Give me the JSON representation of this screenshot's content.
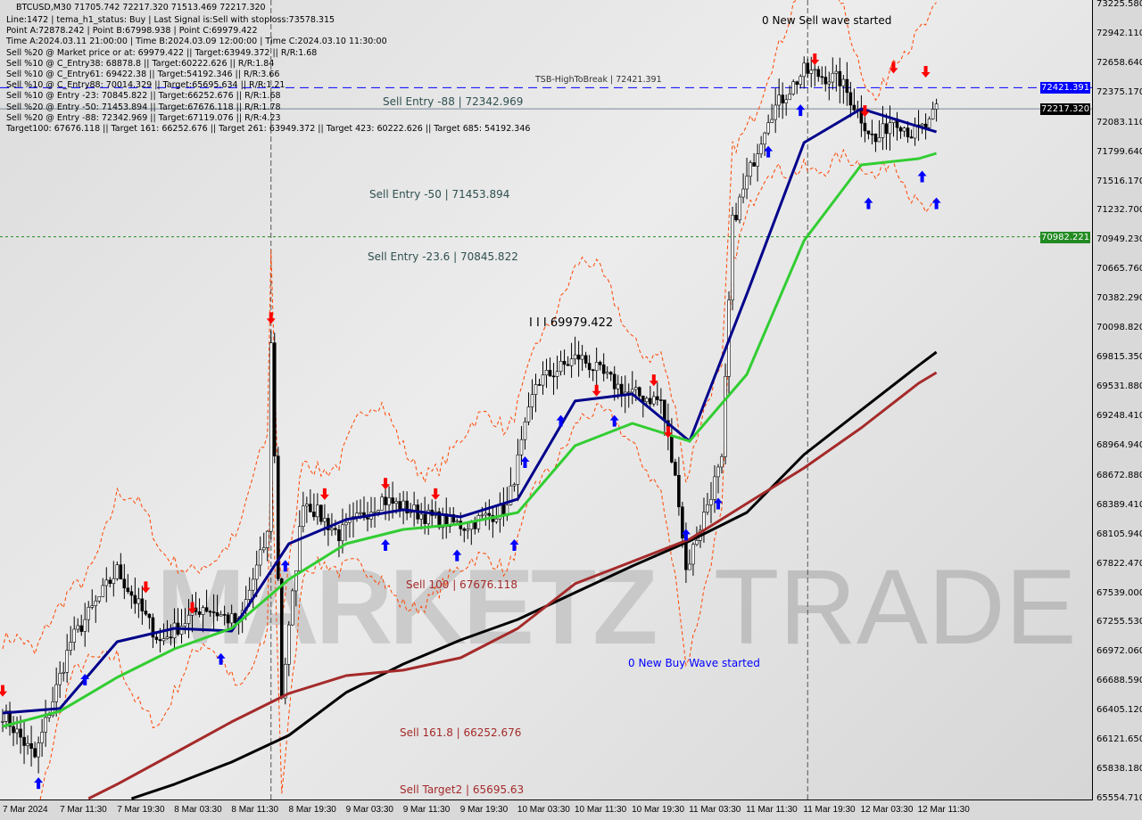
{
  "header": {
    "symbol_line": "BTCUSD,M30  71705.742 72217.320 71513.469 72217.320",
    "info_lines": [
      "Line:1472 | tema_h1_status: Buy | Last Signal is:Sell with stoploss:73578.315",
      "Point A:72878.242 | Point B:67998.938 | Point C:69979.422",
      "Time A:2024.03.11 21:00:00 | Time B:2024.03.09 12:00:00 | Time C:2024.03.10 11:30:00",
      "Sell %20 @ Market price or at: 69979.422 || Target:63949.372 || R/R:1.68",
      "Sell %10 @ C_Entry38: 68878.8 || Target:60222.626 || R/R:1.84",
      "Sell %10 @ C_Entry61: 69422.38 || Target:54192.346 || R/R:3.66",
      "Sell %10 @ C_Entry88: 70014.329 || Target:65695.634 || R/R:1.21",
      "Sell %10 @ Entry -23: 70845.822 || Target:66252.676 || R/R:1.68",
      "Sell %20 @ Entry -50: 71453.894 || Target:67676.118 || R/R:1.78",
      "Sell %20 @ Entry -88: 72342.969 || Target:67119.076 || R/R:4.23",
      "Target100: 67676.118 || Target 161: 66252.676 || Target 261: 63949.372 || Target 423: 60222.626 || Target 685: 54192.346"
    ],
    "tsb_label": "TSB-HighToBreak | 72421.391"
  },
  "annotations": {
    "new_sell_wave": "0 New Sell wave started",
    "sell_entry_88": "Sell Entry -88 | 72342.969",
    "sell_entry_50": "Sell Entry -50 | 71453.894",
    "sell_entry_23": "Sell Entry -23.6 | 70845.822",
    "point_c": "I I I 69979.422",
    "sell_100": "Sell 100 | 67676.118",
    "new_buy_wave": "0 New Buy Wave started",
    "sell_161": "Sell 161.8 | 66252.676",
    "sell_target2": "Sell Target2 | 65695.63"
  },
  "watermark": {
    "left": "MARKETZ",
    "right": "TRADE"
  },
  "chart_data": {
    "type": "candlestick",
    "symbol": "BTCUSD",
    "timeframe": "M30",
    "ylim": [
      65554.71,
      73225.58
    ],
    "y_ticks": [
      "73225.580",
      "72942.110",
      "72658.640",
      "72375.170",
      "72083.110",
      "71799.640",
      "71516.170",
      "71232.700",
      "70949.230",
      "70665.760",
      "70382.290",
      "70098.820",
      "69815.350",
      "69531.880",
      "69248.410",
      "68964.940",
      "68672.880",
      "68389.410",
      "68105.940",
      "67822.470",
      "67539.000",
      "67255.530",
      "66972.060",
      "66688.590",
      "66405.120",
      "66121.650",
      "65838.180",
      "65554.710"
    ],
    "x_ticks": [
      "7 Mar 2024",
      "7 Mar 11:30",
      "7 Mar 19:30",
      "8 Mar 03:30",
      "8 Mar 11:30",
      "8 Mar 19:30",
      "9 Mar 03:30",
      "9 Mar 11:30",
      "9 Mar 19:30",
      "10 Mar 03:30",
      "10 Mar 11:30",
      "10 Mar 19:30",
      "11 Mar 03:30",
      "11 Mar 11:30",
      "11 Mar 19:30",
      "12 Mar 03:30",
      "12 Mar 11:30"
    ],
    "price_tags": [
      {
        "value": "72421.391",
        "color": "#0000ff",
        "line": "dashed"
      },
      {
        "value": "72217.320",
        "color": "#000000",
        "line": "solid"
      },
      {
        "value": "70982.221",
        "color": "#228b22",
        "line": "dotted"
      }
    ],
    "price_path": [
      [
        "2024-03-07 03:30",
        66381
      ],
      [
        "2024-03-07 08:00",
        65951
      ],
      [
        "2024-03-07 13:00",
        67070
      ],
      [
        "2024-03-07 19:30",
        67759
      ],
      [
        "2024-03-08 01:30",
        67070
      ],
      [
        "2024-03-08 07:30",
        67415
      ],
      [
        "2024-03-08 12:30",
        67242
      ],
      [
        "2024-03-08 16:30",
        68103
      ],
      [
        "2024-03-08 17:00",
        69997
      ],
      [
        "2024-03-08 18:30",
        66554
      ],
      [
        "2024-03-08 21:30",
        68448
      ],
      [
        "2024-03-09 02:30",
        68103
      ],
      [
        "2024-03-09 08:30",
        68448
      ],
      [
        "2024-03-09 15:00",
        68276
      ],
      [
        "2024-03-09 20:00",
        68189
      ],
      [
        "2024-03-10 02:00",
        68362
      ],
      [
        "2024-03-10 06:00",
        69567
      ],
      [
        "2024-03-10 12:00",
        69825
      ],
      [
        "2024-03-10 18:30",
        69481
      ],
      [
        "2024-03-10 23:30",
        69395
      ],
      [
        "2024-03-11 02:00",
        68448
      ],
      [
        "2024-03-11 03:00",
        67759
      ],
      [
        "2024-03-11 07:00",
        68620
      ],
      [
        "2024-03-11 08:00",
        68792
      ],
      [
        "2024-03-11 09:30",
        71117
      ],
      [
        "2024-03-11 14:30",
        72150
      ],
      [
        "2024-03-11 19:30",
        72580
      ],
      [
        "2024-03-12 00:30",
        72494
      ],
      [
        "2024-03-12 05:30",
        71891
      ],
      [
        "2024-03-12 08:00",
        72150
      ],
      [
        "2024-03-12 10:30",
        71977
      ],
      [
        "2024-03-12 13:00",
        72063
      ],
      [
        "2024-03-12 14:00",
        72217
      ]
    ],
    "series": [
      {
        "color": "#00008b",
        "values": [
          [
            "2024-03-07 03:30",
            66381
          ],
          [
            "2024-03-07 11:30",
            66425
          ],
          [
            "2024-03-07 19:30",
            67070
          ],
          [
            "2024-03-08 03:30",
            67199
          ],
          [
            "2024-03-08 11:30",
            67173
          ],
          [
            "2024-03-08 19:30",
            68017
          ],
          [
            "2024-03-09 03:30",
            68250
          ],
          [
            "2024-03-09 11:30",
            68345
          ],
          [
            "2024-03-09 19:30",
            68276
          ],
          [
            "2024-03-10 03:30",
            68448
          ],
          [
            "2024-03-10 11:30",
            69395
          ],
          [
            "2024-03-10 19:30",
            69463
          ],
          [
            "2024-03-11 03:30",
            69007
          ],
          [
            "2024-03-11 11:30",
            70428
          ],
          [
            "2024-03-11 19:30",
            71891
          ],
          [
            "2024-03-12 03:30",
            72218
          ],
          [
            "2024-03-12 11:30",
            72046
          ],
          [
            "2024-03-12 14:00",
            71995
          ]
        ]
      },
      {
        "color": "#32cd32",
        "values": [
          [
            "2024-03-07 03:30",
            66252
          ],
          [
            "2024-03-07 11:30",
            66399
          ],
          [
            "2024-03-07 19:30",
            66726
          ],
          [
            "2024-03-08 03:30",
            67001
          ],
          [
            "2024-03-08 11:30",
            67199
          ],
          [
            "2024-03-08 19:30",
            67673
          ],
          [
            "2024-03-09 03:30",
            68017
          ],
          [
            "2024-03-09 11:30",
            68155
          ],
          [
            "2024-03-09 19:30",
            68207
          ],
          [
            "2024-03-10 03:30",
            68318
          ],
          [
            "2024-03-10 11:30",
            68964
          ],
          [
            "2024-03-10 19:30",
            69179
          ],
          [
            "2024-03-11 03:30",
            69007
          ],
          [
            "2024-03-11 11:30",
            69653
          ],
          [
            "2024-03-11 19:30",
            70944
          ],
          [
            "2024-03-12 03:30",
            71676
          ],
          [
            "2024-03-12 11:30",
            71736
          ],
          [
            "2024-03-12 14:00",
            71788
          ]
        ]
      },
      {
        "color": "#000000",
        "values": [
          [
            "2024-03-07 21:30",
            65555
          ],
          [
            "2024-03-08 03:30",
            65693
          ],
          [
            "2024-03-08 11:30",
            65908
          ],
          [
            "2024-03-08 19:30",
            66166
          ],
          [
            "2024-03-09 03:30",
            66580
          ],
          [
            "2024-03-09 11:30",
            66855
          ],
          [
            "2024-03-09 19:30",
            67087
          ],
          [
            "2024-03-10 03:30",
            67285
          ],
          [
            "2024-03-10 11:30",
            67544
          ],
          [
            "2024-03-10 19:30",
            67802
          ],
          [
            "2024-03-11 03:30",
            68043
          ],
          [
            "2024-03-11 11:30",
            68318
          ],
          [
            "2024-03-11 19:30",
            68878
          ],
          [
            "2024-03-12 03:30",
            69309
          ],
          [
            "2024-03-12 11:30",
            69739
          ],
          [
            "2024-03-12 14:00",
            69868
          ]
        ]
      },
      {
        "color": "#a52a2a",
        "values": [
          [
            "2024-03-07 15:30",
            65555
          ],
          [
            "2024-03-07 19:30",
            65693
          ],
          [
            "2024-03-08 03:30",
            65994
          ],
          [
            "2024-03-08 11:30",
            66296
          ],
          [
            "2024-03-08 19:30",
            66571
          ],
          [
            "2024-03-09 03:30",
            66743
          ],
          [
            "2024-03-09 11:30",
            66795
          ],
          [
            "2024-03-09 19:30",
            66915
          ],
          [
            "2024-03-10 03:30",
            67199
          ],
          [
            "2024-03-10 11:30",
            67630
          ],
          [
            "2024-03-10 19:30",
            67845
          ],
          [
            "2024-03-11 03:30",
            68060
          ],
          [
            "2024-03-11 11:30",
            68405
          ],
          [
            "2024-03-11 19:30",
            68749
          ],
          [
            "2024-03-12 03:30",
            69136
          ],
          [
            "2024-03-12 11:30",
            69567
          ],
          [
            "2024-03-12 14:00",
            69670
          ]
        ]
      }
    ],
    "signals": [
      [
        "2024-03-07 03:30",
        66600,
        "sell"
      ],
      [
        "2024-03-07 08:30",
        65700,
        "buy"
      ],
      [
        "2024-03-07 15:00",
        66700,
        "buy"
      ],
      [
        "2024-03-07 23:30",
        67600,
        "sell"
      ],
      [
        "2024-03-08 06:00",
        67400,
        "sell"
      ],
      [
        "2024-03-08 10:00",
        66900,
        "buy"
      ],
      [
        "2024-03-08 17:00",
        70200,
        "sell"
      ],
      [
        "2024-03-08 19:00",
        67800,
        "buy"
      ],
      [
        "2024-03-09 00:30",
        68500,
        "sell"
      ],
      [
        "2024-03-09 09:00",
        68600,
        "sell"
      ],
      [
        "2024-03-09 09:00",
        68000,
        "buy"
      ],
      [
        "2024-03-09 16:00",
        68500,
        "sell"
      ],
      [
        "2024-03-09 19:00",
        67900,
        "buy"
      ],
      [
        "2024-03-10 03:00",
        68000,
        "buy"
      ],
      [
        "2024-03-10 04:30",
        68800,
        "buy"
      ],
      [
        "2024-03-10 09:30",
        69200,
        "buy"
      ],
      [
        "2024-03-10 14:30",
        69500,
        "sell"
      ],
      [
        "2024-03-10 17:00",
        69200,
        "buy"
      ],
      [
        "2024-03-10 22:30",
        69600,
        "sell"
      ],
      [
        "2024-03-11 00:30",
        69100,
        "sell"
      ],
      [
        "2024-03-11 03:00",
        68100,
        "buy"
      ],
      [
        "2024-03-11 07:30",
        68400,
        "buy"
      ],
      [
        "2024-03-11 14:30",
        71800,
        "buy"
      ],
      [
        "2024-03-11 19:00",
        72200,
        "buy"
      ],
      [
        "2024-03-11 21:00",
        72700,
        "sell"
      ],
      [
        "2024-03-12 04:00",
        72200,
        "sell"
      ],
      [
        "2024-03-12 08:00",
        72620,
        "sell"
      ],
      [
        "2024-03-12 12:30",
        72580,
        "sell"
      ],
      [
        "2024-03-12 04:30",
        71300,
        "buy"
      ],
      [
        "2024-03-12 12:00",
        71560,
        "buy"
      ],
      [
        "2024-03-12 14:00",
        71300,
        "buy"
      ]
    ],
    "vlines": [
      "2024-03-08 17:00",
      "2024-03-11 20:00"
    ]
  }
}
